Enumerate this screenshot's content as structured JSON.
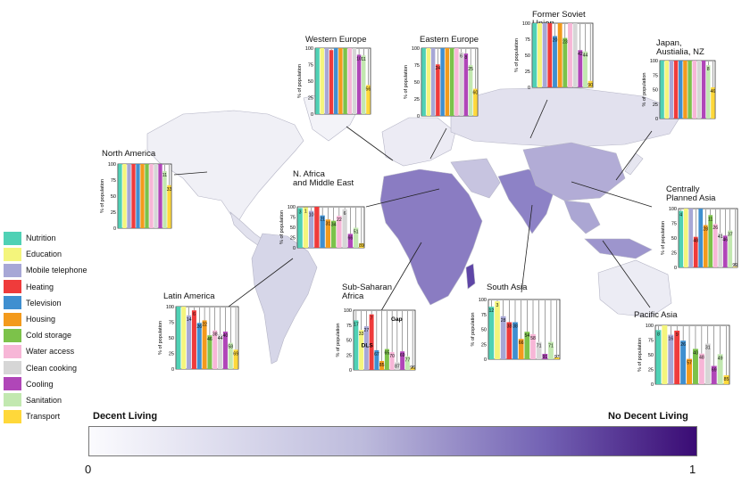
{
  "legend": [
    {
      "label": "Nutrition",
      "color": "#4fd1b5"
    },
    {
      "label": "Education",
      "color": "#f4f57c"
    },
    {
      "label": "Mobile telephone",
      "color": "#a7a7d6"
    },
    {
      "label": "Heating",
      "color": "#ef3b3b"
    },
    {
      "label": "Television",
      "color": "#3f8fd0"
    },
    {
      "label": "Housing",
      "color": "#f39a1c"
    },
    {
      "label": "Cold storage",
      "color": "#7cc24a"
    },
    {
      "label": "Water access",
      "color": "#f7b6d7"
    },
    {
      "label": "Clean cooking",
      "color": "#d6d6d6"
    },
    {
      "label": "Cooling",
      "color": "#b046b8"
    },
    {
      "label": "Sanitation",
      "color": "#c2e8b0"
    },
    {
      "label": "Transport",
      "color": "#ffd83a"
    }
  ],
  "scale": {
    "left_label": "Decent Living",
    "right_label": "No Decent Living",
    "min": "0",
    "max": "1"
  },
  "chart_data": [
    {
      "type": "bar",
      "region": "North America",
      "title": [
        "North America"
      ],
      "ylabel": "% of population",
      "yticks": [
        "0",
        "25",
        "50",
        "75",
        "100"
      ],
      "ylim": [
        0,
        100
      ],
      "values": [
        100,
        100,
        100,
        100,
        100,
        100,
        100,
        100,
        100,
        100,
        89,
        67
      ],
      "labels": [
        "",
        "",
        "",
        "",
        "",
        "",
        "",
        "",
        "",
        "",
        "11",
        "33"
      ]
    },
    {
      "type": "bar",
      "region": "Western Europe",
      "title": [
        "Western Europe"
      ],
      "ylabel": "% of population",
      "yticks": [
        "0",
        "25",
        "50",
        "75",
        "100"
      ],
      "ylim": [
        0,
        100
      ],
      "values": [
        100,
        100,
        100,
        97,
        100,
        100,
        100,
        100,
        100,
        90,
        89,
        44
      ],
      "labels": [
        "",
        "",
        "",
        "",
        "",
        "",
        "",
        "",
        "",
        "10",
        "11",
        "56"
      ]
    },
    {
      "type": "bar",
      "region": "Eastern Europe",
      "title": [
        "Eastern Europe"
      ],
      "ylabel": "% of population",
      "yticks": [
        "0",
        "25",
        "50",
        "75",
        "100"
      ],
      "ylim": [
        0,
        100
      ],
      "values": [
        100,
        100,
        100,
        76,
        100,
        100,
        100,
        100,
        94,
        92,
        75,
        40
      ],
      "labels": [
        "",
        "",
        "",
        "24",
        "",
        "",
        "",
        "",
        "6",
        "8",
        "25",
        "60"
      ]
    },
    {
      "type": "bar",
      "region": "Former Soviet Union",
      "title": [
        "Former Soviet",
        "Union"
      ],
      "ylabel": "% of population",
      "yticks": [
        "0",
        "25",
        "50",
        "75",
        "100"
      ],
      "ylim": [
        0,
        100
      ],
      "values": [
        100,
        100,
        100,
        100,
        80,
        100,
        77,
        100,
        100,
        58,
        56,
        10
      ],
      "labels": [
        "",
        "",
        "",
        "",
        "20",
        "",
        "23",
        "",
        "",
        "42",
        "44",
        "90"
      ]
    },
    {
      "type": "bar",
      "region": "Japan, Australia, NZ",
      "title": [
        "Japan,",
        "Austialia, NZ"
      ],
      "ylabel": "% of population",
      "yticks": [
        "0",
        "25",
        "50",
        "75",
        "100"
      ],
      "ylim": [
        0,
        100
      ],
      "values": [
        100,
        100,
        100,
        100,
        100,
        100,
        100,
        100,
        100,
        100,
        92,
        54
      ],
      "labels": [
        "",
        "",
        "",
        "",
        "",
        "",
        "",
        "",
        "",
        "",
        "8",
        "46"
      ]
    },
    {
      "type": "bar",
      "region": "N. Africa and Middle East",
      "title": [
        "N. Africa",
        "and Middle East"
      ],
      "ylabel": "% of population",
      "yticks": [
        "0",
        "25",
        "50",
        "75",
        "100"
      ],
      "ylim": [
        0,
        100
      ],
      "values": [
        97,
        99,
        90,
        100,
        79,
        69,
        66,
        78,
        94,
        34,
        49,
        11
      ],
      "labels": [
        "3",
        "1",
        "10",
        "",
        "21",
        "31",
        "34",
        "22",
        "6",
        "66",
        "51",
        "89"
      ]
    },
    {
      "type": "bar",
      "region": "Centrally Planned Asia",
      "title": [
        "Centrally",
        "Planned Asia"
      ],
      "ylabel": "% of population",
      "yticks": [
        "0",
        "25",
        "50",
        "75",
        "100"
      ],
      "ylim": [
        0,
        100
      ],
      "values": [
        96,
        100,
        100,
        52,
        100,
        72,
        89,
        74,
        59,
        54,
        63,
        1
      ],
      "labels": [
        "4",
        "",
        "",
        "48",
        "",
        "28",
        "11",
        "26",
        "41",
        "46",
        "37",
        "99"
      ]
    },
    {
      "type": "bar",
      "region": "Latin America",
      "title": [
        "Latin America"
      ],
      "ylabel": "% of population",
      "yticks": [
        "0",
        "25",
        "50",
        "75",
        "100"
      ],
      "ylim": [
        0,
        100
      ],
      "values": [
        100,
        100,
        86,
        94,
        74,
        78,
        54,
        62,
        56,
        60,
        42,
        31
      ],
      "labels": [
        "",
        "",
        "14",
        "6",
        "26",
        "22",
        "46",
        "38",
        "44",
        "40",
        "58",
        "69"
      ]
    },
    {
      "type": "bar",
      "region": "Sub-Saharan Africa",
      "title": [
        "Sub-Saharan",
        "Africa"
      ],
      "ylabel": "% of population",
      "yticks": [
        "0",
        "25",
        "50",
        "75",
        "100"
      ],
      "ylim": [
        0,
        100
      ],
      "values": [
        83,
        67,
        73,
        93,
        33,
        15,
        35,
        30,
        13,
        31,
        23,
        4
      ],
      "labels": [
        "17",
        "33",
        "27",
        "7",
        "67",
        "85",
        "65",
        "70",
        "87",
        "69",
        "77",
        "96"
      ],
      "annotations": [
        "DLS",
        "Gap"
      ]
    },
    {
      "type": "bar",
      "region": "South Asia",
      "title": [
        "South Asia"
      ],
      "ylabel": "% of population",
      "yticks": [
        "0",
        "25",
        "50",
        "75",
        "100"
      ],
      "ylim": [
        0,
        100
      ],
      "values": [
        88,
        97,
        72,
        62,
        62,
        34,
        46,
        42,
        29,
        9,
        29,
        3
      ],
      "labels": [
        "12",
        "3",
        "28",
        "38",
        "38",
        "66",
        "54",
        "58",
        "71",
        "91",
        "71",
        "97"
      ]
    },
    {
      "type": "bar",
      "region": "Pacific Asia",
      "title": [
        "Pacific Asia"
      ],
      "ylabel": "% of population",
      "yticks": [
        "0",
        "25",
        "50",
        "75",
        "100"
      ],
      "ylim": [
        0,
        100
      ],
      "values": [
        92,
        100,
        84,
        91,
        74,
        43,
        60,
        52,
        69,
        31,
        51,
        15
      ],
      "labels": [
        "8",
        "",
        "16",
        "9",
        "26",
        "57",
        "40",
        "48",
        "31",
        "69",
        "49",
        "85"
      ]
    }
  ]
}
